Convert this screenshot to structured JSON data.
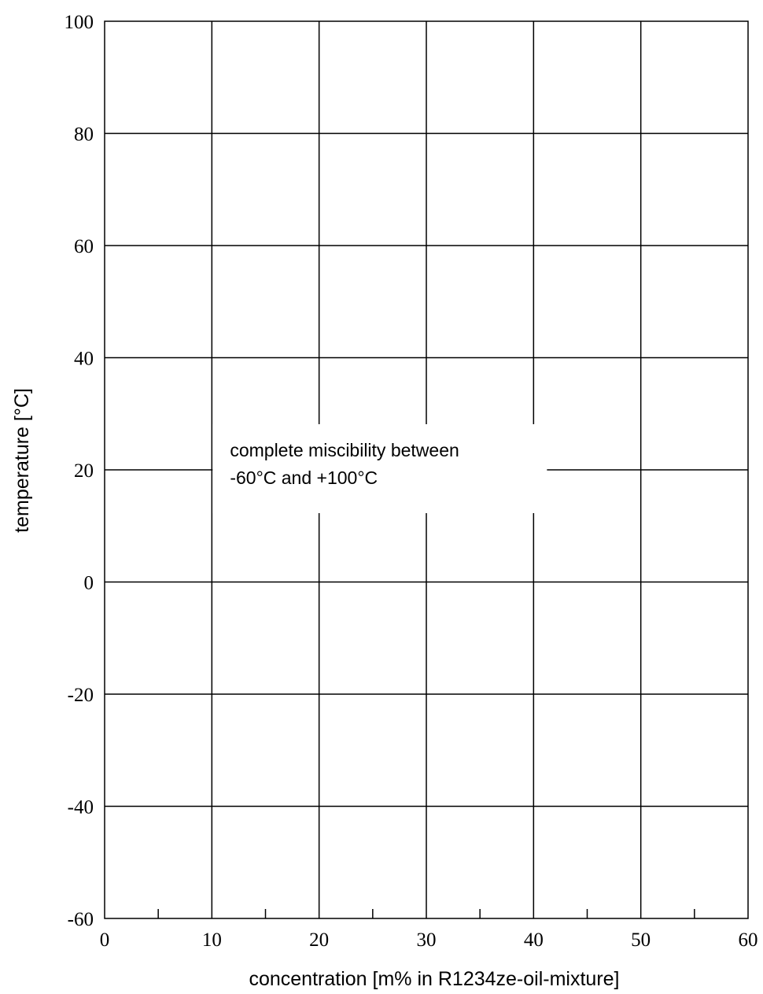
{
  "chart_data": {
    "type": "line",
    "title": "",
    "xlabel": "concentration [m% in R1234ze-oil-mixture]",
    "ylabel": "temperature [°C]",
    "xlim": [
      0,
      60
    ],
    "ylim": [
      -60,
      100
    ],
    "x_ticks": [
      0,
      10,
      20,
      30,
      40,
      50,
      60
    ],
    "x_tick_labels": [
      "0",
      "10",
      "20",
      "30",
      "40",
      "50",
      "60"
    ],
    "x_minor_ticks": [
      5,
      15,
      25,
      35,
      45,
      55
    ],
    "y_ticks": [
      -60,
      -40,
      -20,
      0,
      20,
      40,
      60,
      80,
      100
    ],
    "y_tick_labels": [
      "-60",
      "-40",
      "-20",
      "0",
      "20",
      "40",
      "60",
      "80",
      "100"
    ],
    "grid": true,
    "series": [],
    "annotations": [
      {
        "lines": [
          "complete miscibility between",
          "-60°C and +100°C"
        ],
        "x": 10,
        "y": 20
      }
    ]
  },
  "colors": {
    "background": "#ffffff",
    "grid": "#000000",
    "text": "#000000"
  }
}
